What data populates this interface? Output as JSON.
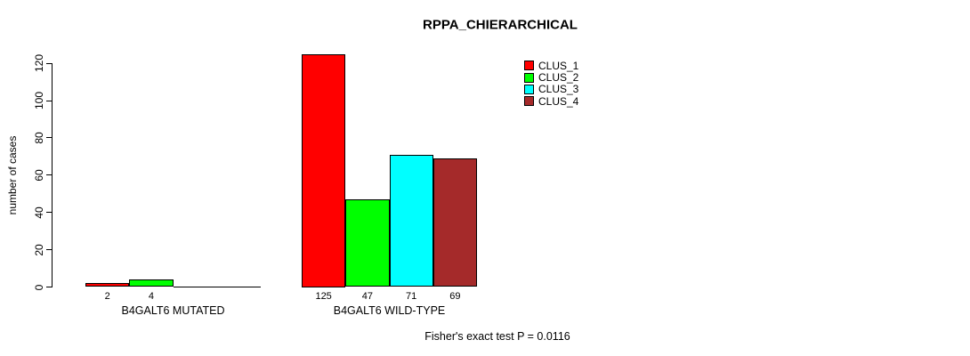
{
  "title": "RPPA_CHIERARCHICAL",
  "footer": "Fisher's exact test P = 0.0116",
  "chart_data": {
    "type": "bar",
    "title": "RPPA_CHIERARCHICAL",
    "xlabel": "",
    "ylabel": "number of cases",
    "ylim": [
      0,
      120
    ],
    "yticks": [
      0,
      20,
      40,
      60,
      80,
      100,
      120
    ],
    "grid": false,
    "legend_position": "top-right",
    "categories": [
      "B4GALT6 MUTATED",
      "B4GALT6 WILD-TYPE"
    ],
    "series": [
      {
        "name": "CLUS_1",
        "color": "#FF0000",
        "values": [
          2,
          125
        ]
      },
      {
        "name": "CLUS_2",
        "color": "#00FF00",
        "values": [
          4,
          47
        ]
      },
      {
        "name": "CLUS_3",
        "color": "#00FFFF",
        "values": [
          0,
          71
        ]
      },
      {
        "name": "CLUS_4",
        "color": "#A52A2A",
        "values": [
          0,
          69
        ]
      }
    ],
    "bar_value_labels_shown_only_if_nonzero": true,
    "annotation": "Fisher's exact test P = 0.0116"
  }
}
